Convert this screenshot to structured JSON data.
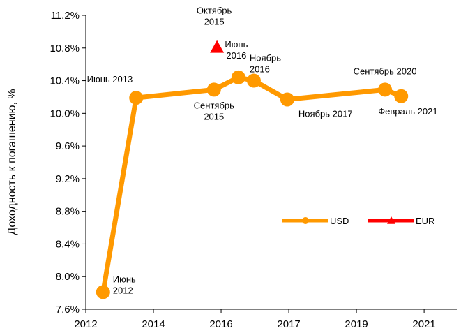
{
  "chart_data": {
    "type": "line",
    "y_label": "Доходность к погашению, %",
    "xlim": [
      2012.5,
      2022.37
    ],
    "xticks": [
      {
        "value": 2012.5,
        "label": "2012"
      },
      {
        "value": 2014.3,
        "label": "2014"
      },
      {
        "value": 2016.1,
        "label": "2016"
      },
      {
        "value": 2017.9,
        "label": "2017"
      },
      {
        "value": 2019.7,
        "label": "2019"
      },
      {
        "value": 2021.5,
        "label": "2021"
      }
    ],
    "ylim": [
      7.6,
      11.2
    ],
    "yticks": [
      {
        "value": 7.6,
        "label": "7.6%"
      },
      {
        "value": 8.0,
        "label": "8.0%"
      },
      {
        "value": 8.4,
        "label": "8.4%"
      },
      {
        "value": 8.8,
        "label": "8.8%"
      },
      {
        "value": 9.2,
        "label": "9.2%"
      },
      {
        "value": 9.6,
        "label": "9.6%"
      },
      {
        "value": 10.0,
        "label": "10.0%"
      },
      {
        "value": 10.4,
        "label": "10.4%"
      },
      {
        "value": 10.8,
        "label": "10.8%"
      },
      {
        "value": 11.2,
        "label": "11.2%"
      }
    ],
    "grid": false,
    "legend": "right",
    "series": [
      {
        "name": "USD",
        "color": "#ff9900",
        "marker": "circle",
        "x": [
          2012.96,
          2013.84,
          2015.91,
          2016.56,
          2016.97,
          2017.86,
          2020.46,
          2020.89
        ],
        "values": [
          7.81,
          10.19,
          10.29,
          10.44,
          10.4,
          10.17,
          10.29,
          10.21
        ],
        "point_labels": [
          "Июнь\n2012",
          "Июнь 2013",
          "Сентябрь\n2015",
          "Июнь\n2016",
          "Ноябрь\n2016",
          "Ноябрь 2017",
          "Сентябрь 2020",
          "Февраль  2021"
        ]
      },
      {
        "name": "EUR",
        "color": "#ff0000",
        "marker": "triangle",
        "x": [
          2015.99
        ],
        "values": [
          10.81
        ],
        "point_labels": [
          "Октябрь\n2015"
        ]
      }
    ]
  }
}
